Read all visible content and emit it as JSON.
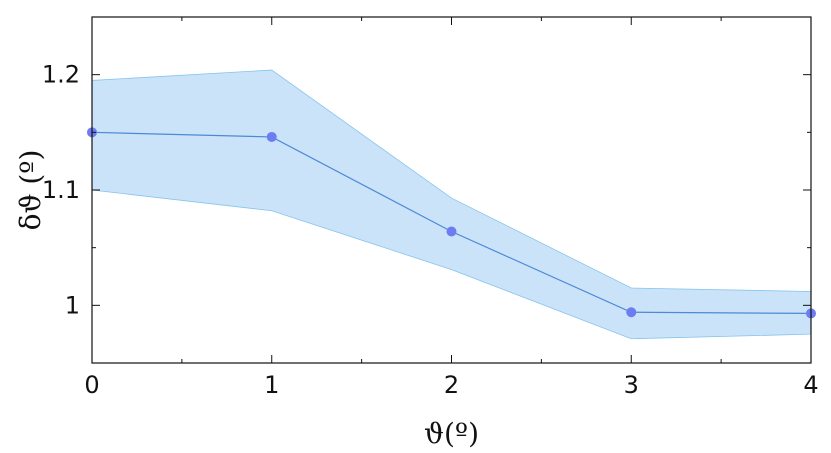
{
  "chart_data": {
    "type": "line",
    "title": "",
    "xlabel": "ϑ(º)",
    "ylabel": "δϑ (º)",
    "xlim": [
      0,
      4
    ],
    "ylim": [
      0.95,
      1.25
    ],
    "grid": false,
    "x_ticks": [
      0,
      1,
      2,
      3,
      4
    ],
    "x_tick_labels": [
      "0",
      "1",
      "2",
      "3",
      "4"
    ],
    "x_minor_ticks": [
      0.5,
      1.5,
      2.5,
      3.5
    ],
    "y_ticks": [
      1.0,
      1.1,
      1.2
    ],
    "y_tick_labels": [
      "1",
      "1.1",
      "1.2"
    ],
    "y_minor_ticks": [
      1.05,
      1.15
    ],
    "series": [
      {
        "x": [
          0,
          1,
          2,
          3,
          4
        ],
        "values": [
          1.15,
          1.146,
          1.064,
          0.994,
          0.993
        ],
        "lower": [
          1.1,
          1.082,
          1.031,
          0.971,
          0.975
        ],
        "upper": [
          1.195,
          1.204,
          1.093,
          1.015,
          1.012
        ]
      }
    ],
    "colors": {
      "line": "#4a8ad6",
      "marker": "#6e7cf2",
      "band_fill": "#a9d0f5",
      "band_edge": "#86c4ec",
      "axis": "#111111"
    }
  }
}
